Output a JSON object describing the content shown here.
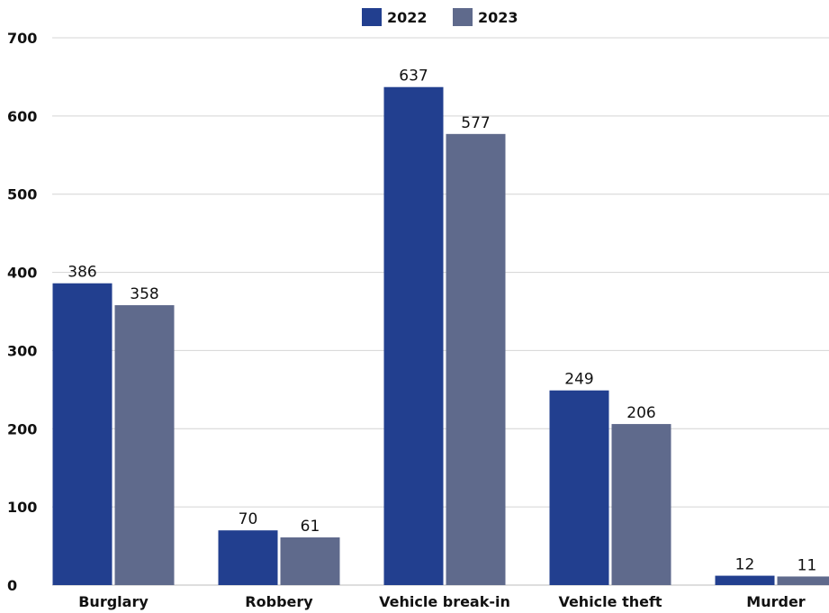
{
  "chart_data": {
    "type": "bar",
    "categories": [
      "Burglary",
      "Robbery",
      "Vehicle break-in",
      "Vehicle theft",
      "Murder"
    ],
    "series": [
      {
        "name": "2022",
        "values": [
          386,
          70,
          637,
          249,
          12
        ],
        "color": "#223f8f"
      },
      {
        "name": "2023",
        "values": [
          358,
          61,
          577,
          206,
          11
        ],
        "color": "#5f6a8c"
      }
    ],
    "ylim": [
      0,
      700
    ],
    "yticks": [
      0,
      100,
      200,
      300,
      400,
      500,
      600,
      700
    ],
    "grid": true,
    "legend": "top-center",
    "data_labels": true
  }
}
